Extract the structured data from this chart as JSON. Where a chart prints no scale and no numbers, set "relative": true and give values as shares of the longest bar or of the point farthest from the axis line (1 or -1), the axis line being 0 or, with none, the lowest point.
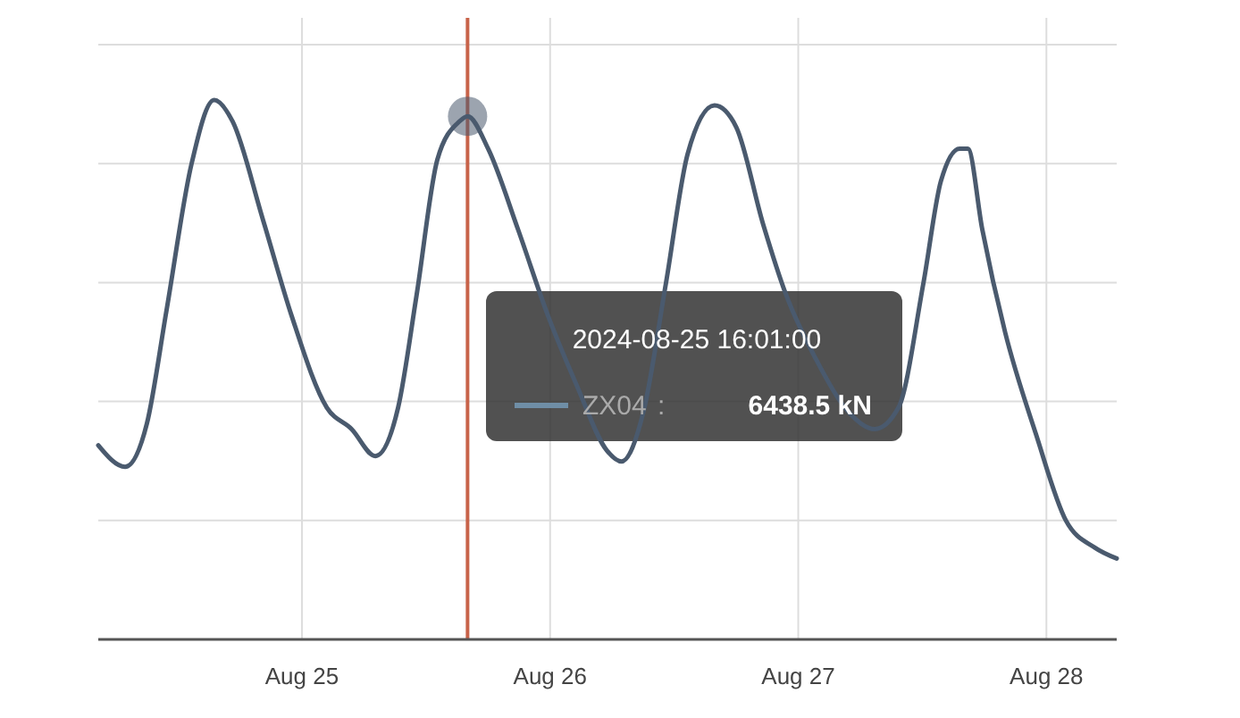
{
  "chart_data": {
    "type": "line",
    "relative": true,
    "xlim": [
      "2024-08-24T04:18",
      "2024-08-28T06:48"
    ],
    "xticks": [
      {
        "value": "2024-08-25",
        "label": "Aug 25"
      },
      {
        "value": "2024-08-26",
        "label": "Aug 26"
      },
      {
        "value": "2024-08-27",
        "label": "Aug 27"
      },
      {
        "value": "2024-08-28",
        "label": "Aug 28"
      }
    ],
    "grid": true,
    "marker": "none",
    "line_style": "solid",
    "x": [
      "2024-08-24T04:18",
      "2024-08-24T06:54",
      "2024-08-24T09:00",
      "2024-08-24T10:54",
      "2024-08-24T13:18",
      "2024-08-24T15:30",
      "2024-08-24T17:18",
      "2024-08-24T20:12",
      "2024-08-24T23:00",
      "2024-08-25T02:24",
      "2024-08-25T04:48",
      "2024-08-25T07:06",
      "2024-08-25T09:18",
      "2024-08-25T11:06",
      "2024-08-25T13:06",
      "2024-08-25T15:12",
      "2024-08-25T16:01",
      "2024-08-25T18:00",
      "2024-08-25T20:54",
      "2024-08-25T23:48",
      "2024-08-26T02:36",
      "2024-08-26T05:30",
      "2024-08-26T06:54",
      "2024-08-26T09:00",
      "2024-08-26T11:12",
      "2024-08-26T13:18",
      "2024-08-26T15:54",
      "2024-08-26T18:00",
      "2024-08-26T20:36",
      "2024-08-26T22:48",
      "2024-08-27T01:42",
      "2024-08-27T04:30",
      "2024-08-27T07:24",
      "2024-08-27T09:42",
      "2024-08-27T12:06",
      "2024-08-27T13:48",
      "2024-08-27T15:36",
      "2024-08-27T16:24",
      "2024-08-27T17:48",
      "2024-08-27T20:00",
      "2024-08-27T23:00",
      "2024-08-28T01:54",
      "2024-08-28T04:42",
      "2024-08-28T06:48"
    ],
    "series": [
      {
        "name": "ZX04",
        "color": "#4a5a6e",
        "values": [
          0.36,
          0.32,
          0.4,
          0.61,
          0.88,
          1,
          0.96,
          0.78,
          0.6,
          0.43,
          0.39,
          0.34,
          0.43,
          0.64,
          0.89,
          0.96,
          0.97,
          0.91,
          0.76,
          0.6,
          0.47,
          0.35,
          0.33,
          0.42,
          0.66,
          0.9,
          0.99,
          0.95,
          0.77,
          0.64,
          0.52,
          0.43,
          0.39,
          0.43,
          0.66,
          0.85,
          0.91,
          0.91,
          0.76,
          0.57,
          0.38,
          0.22,
          0.17,
          0.15
        ]
      }
    ],
    "ref_lines": [
      {
        "axis": "x",
        "value": "2024-08-25T16:01",
        "color": "#c8634a"
      }
    ],
    "annotations": [
      "2024-08-25 16:01:00",
      ":",
      "6438.5 kN"
    ]
  }
}
